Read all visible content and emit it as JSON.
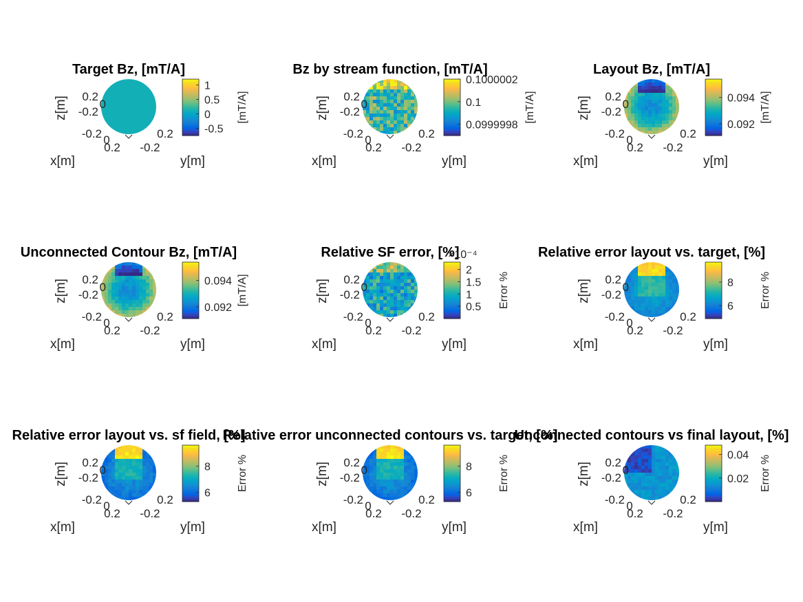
{
  "chart_data": [
    {
      "type": "heatmap",
      "title": "Target Bz, [mT/A]",
      "xlabel": "x[m]",
      "ylabel": "y[m]",
      "zlabel": "z[m]",
      "axis_ticks": {
        "z": [
          "0.2",
          "0",
          "-0.2",
          "-0.2"
        ],
        "x": [
          "0",
          "0.2"
        ],
        "y": [
          "-0.2",
          "0.2"
        ]
      },
      "colorbar": {
        "label": "[mT/A]",
        "limits": [
          -0.75,
          1.2
        ],
        "ticks": [
          -0.5,
          0,
          0.5,
          1
        ],
        "tick_labels": [
          "-0.5",
          "0",
          "0.5",
          "1"
        ],
        "exponent": ""
      },
      "surface": {
        "pattern": "uniform",
        "mean": 0.1,
        "spread": 0
      }
    },
    {
      "type": "heatmap",
      "title": "Bz by stream function, [mT/A]",
      "xlabel": "x[m]",
      "ylabel": "y[m]",
      "zlabel": "z[m]",
      "axis_ticks": {
        "z": [
          "0.2",
          "0",
          "-0.2",
          "-0.2"
        ],
        "x": [
          "0",
          "0.2"
        ],
        "y": [
          "-0.2",
          "0.2"
        ]
      },
      "colorbar": {
        "label": "[mT/A]",
        "limits": [
          0.0999997,
          0.1000002
        ],
        "ticks": [
          0.0999998,
          0.1,
          0.1000002
        ],
        "tick_labels": [
          "0.0999998",
          "0.1",
          "0.1000002"
        ],
        "exponent": ""
      },
      "surface": {
        "pattern": "noisy",
        "mean": 0.09999995,
        "spread": 1.5e-07
      }
    },
    {
      "type": "heatmap",
      "title": "Layout Bz, [mT/A]",
      "xlabel": "x[m]",
      "ylabel": "y[m]",
      "zlabel": "z[m]",
      "axis_ticks": {
        "z": [
          "0.2",
          "0",
          "-0.2",
          "-0.2"
        ],
        "x": [
          "0",
          "0.2"
        ],
        "y": [
          "-0.2",
          "0.2"
        ]
      },
      "colorbar": {
        "label": "[mT/A]",
        "limits": [
          0.0911,
          0.0954
        ],
        "ticks": [
          0.092,
          0.094
        ],
        "tick_labels": [
          "0.092",
          "0.094"
        ],
        "exponent": ""
      },
      "surface": {
        "pattern": "center-low",
        "mean": 0.0935,
        "spread": 0.0017
      }
    },
    {
      "type": "heatmap",
      "title": "Unconnected Contour Bz, [mT/A]",
      "xlabel": "x[m]",
      "ylabel": "y[m]",
      "zlabel": "z[m]",
      "axis_ticks": {
        "z": [
          "0.2",
          "0",
          "-0.2",
          "-0.2"
        ],
        "x": [
          "0",
          "0.2"
        ],
        "y": [
          "-0.2",
          "0.2"
        ]
      },
      "colorbar": {
        "label": "[mT/A]",
        "limits": [
          0.0911,
          0.0954
        ],
        "ticks": [
          0.092,
          0.094
        ],
        "tick_labels": [
          "0.092",
          "0.094"
        ],
        "exponent": ""
      },
      "surface": {
        "pattern": "center-low",
        "mean": 0.0935,
        "spread": 0.0017
      }
    },
    {
      "type": "heatmap",
      "title": "Relative SF error, [%]",
      "xlabel": "x[m]",
      "ylabel": "y[m]",
      "zlabel": "z[m]",
      "axis_ticks": {
        "z": [
          "0.2",
          "0",
          "-0.2",
          "-0.2"
        ],
        "x": [
          "0",
          "0.2"
        ],
        "y": [
          "-0.2",
          "0.2"
        ]
      },
      "colorbar": {
        "label": "Error %",
        "limits": [
          0.0,
          2.3
        ],
        "ticks": [
          0.5,
          1,
          1.5,
          2
        ],
        "tick_labels": [
          "0.5",
          "1",
          "1.5",
          "2"
        ],
        "exponent": "×10⁻⁴"
      },
      "surface": {
        "pattern": "noisy",
        "mean": 0.9,
        "spread": 0.6
      }
    },
    {
      "type": "heatmap",
      "title": "Relative error layout vs. target, [%]",
      "xlabel": "x[m]",
      "ylabel": "y[m]",
      "zlabel": "z[m]",
      "axis_ticks": {
        "z": [
          "0.2",
          "0",
          "-0.2",
          "-0.2"
        ],
        "x": [
          "0",
          "0.2"
        ],
        "y": [
          "-0.2",
          "0.2"
        ]
      },
      "colorbar": {
        "label": "Error %",
        "limits": [
          4.9,
          9.7
        ],
        "ticks": [
          6,
          8
        ],
        "tick_labels": [
          "6",
          "8"
        ],
        "exponent": ""
      },
      "surface": {
        "pattern": "center-high",
        "mean": 6.6,
        "spread": 1.9
      }
    },
    {
      "type": "heatmap",
      "title": "Relative error layout vs. sf field, [%]",
      "xlabel": "x[m]",
      "ylabel": "y[m]",
      "zlabel": "z[m]",
      "axis_ticks": {
        "z": [
          "0.2",
          "0",
          "-0.2",
          "-0.2"
        ],
        "x": [
          "0",
          "0.2"
        ],
        "y": [
          "-0.2",
          "0.2"
        ]
      },
      "colorbar": {
        "label": "Error %",
        "limits": [
          5.3,
          9.6
        ],
        "ticks": [
          6,
          8
        ],
        "tick_labels": [
          "6",
          "8"
        ],
        "exponent": ""
      },
      "surface": {
        "pattern": "center-high",
        "mean": 6.6,
        "spread": 1.9
      }
    },
    {
      "type": "heatmap",
      "title": "Relative error unconnected contours vs. target, [%]",
      "xlabel": "x[m]",
      "ylabel": "y[m]",
      "zlabel": "z[m]",
      "axis_ticks": {
        "z": [
          "0.2",
          "0",
          "-0.2",
          "-0.2"
        ],
        "x": [
          "0",
          "0.2"
        ],
        "y": [
          "-0.2",
          "0.2"
        ]
      },
      "colorbar": {
        "label": "Error %",
        "limits": [
          5.3,
          9.6
        ],
        "ticks": [
          6,
          8
        ],
        "tick_labels": [
          "6",
          "8"
        ],
        "exponent": ""
      },
      "surface": {
        "pattern": "center-high",
        "mean": 6.6,
        "spread": 1.9
      }
    },
    {
      "type": "heatmap",
      "title": "Unconnected contours vs final layout, [%]",
      "xlabel": "x[m]",
      "ylabel": "y[m]",
      "zlabel": "z[m]",
      "axis_ticks": {
        "z": [
          "0.2",
          "0",
          "-0.2",
          "-0.2"
        ],
        "x": [
          "0",
          "0.2"
        ],
        "y": [
          "-0.2",
          "0.2"
        ]
      },
      "colorbar": {
        "label": "Error %",
        "limits": [
          0.0,
          0.048
        ],
        "ticks": [
          0.02,
          0.04
        ],
        "tick_labels": [
          "0.02",
          "0.04"
        ],
        "exponent": ""
      },
      "surface": {
        "pattern": "patchy-low",
        "mean": 0.012,
        "spread": 0.01
      }
    }
  ]
}
